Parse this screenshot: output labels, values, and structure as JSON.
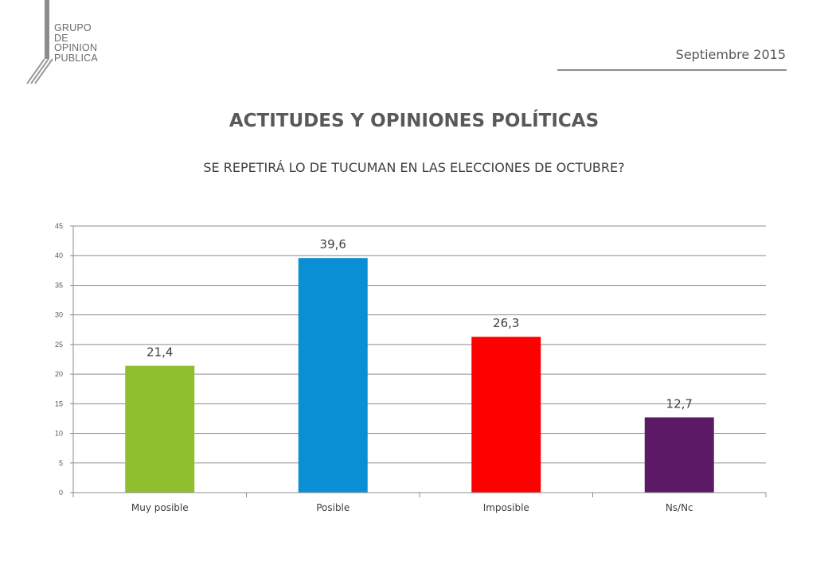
{
  "header": {
    "logo_lines": [
      "GRUPO",
      "DE",
      "OPINION",
      "PUBLICA"
    ],
    "date": "Septiembre 2015"
  },
  "title": "ACTITUDES Y OPINIONES POLÍTICAS",
  "subtitle": "SE REPETIRÁ LO DE TUCUMAN EN LAS ELECCIONES DE OCTUBRE?",
  "colors": {
    "Muy posible": "#8fbf2f",
    "Posible": "#0a8fd4",
    "Imposible": "#ff0000",
    "Ns/Nc": "#5c1a66"
  },
  "chart_data": {
    "type": "bar",
    "categories": [
      "Muy posible",
      "Posible",
      "Imposible",
      "Ns/Nc"
    ],
    "values": [
      21.4,
      39.6,
      26.3,
      12.7
    ],
    "data_labels": [
      "21,4",
      "39,6",
      "26,3",
      "12,7"
    ],
    "title": "",
    "xlabel": "",
    "ylabel": "",
    "ylim": [
      0,
      45
    ],
    "yticks": [
      0,
      5,
      10,
      15,
      20,
      25,
      30,
      35,
      40,
      45
    ],
    "grid": true,
    "legend": "none"
  }
}
